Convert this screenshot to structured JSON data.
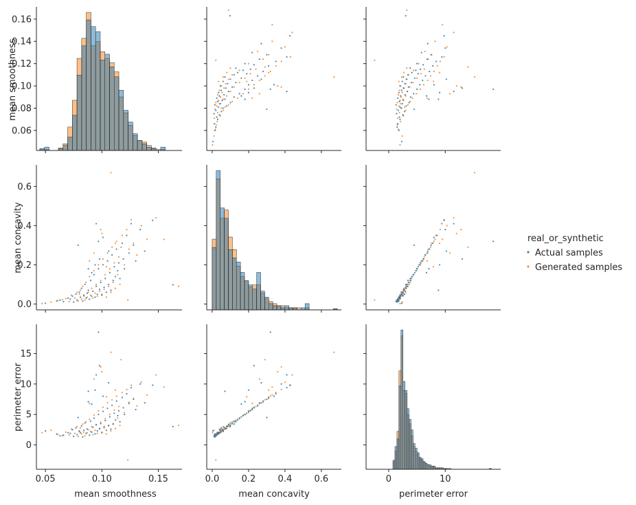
{
  "chart_data": {
    "type": "scatter",
    "kind": "pairplot",
    "variables": [
      "mean smoothness",
      "mean concavity",
      "perimeter error"
    ],
    "hue_title": "real_or_synthetic",
    "hue_levels": [
      {
        "name": "Actual samples",
        "color": "#1f77b4"
      },
      {
        "name": "Generated samples",
        "color": "#ff7f0e"
      }
    ],
    "legend_placement": "right",
    "grid": false,
    "axes": {
      "mean smoothness": {
        "lim": [
          0.042,
          0.171
        ],
        "ticks": [
          0.05,
          0.1,
          0.15
        ],
        "tick_labels": [
          "0.05",
          "0.10",
          "0.15"
        ],
        "y_ticks": [
          0.06,
          0.08,
          0.1,
          0.12,
          0.14,
          0.16
        ],
        "y_tick_labels": [
          "0.06",
          "0.08",
          "0.10",
          "0.12",
          "0.14",
          "0.16"
        ]
      },
      "mean concavity": {
        "lim": [
          -0.03,
          0.71
        ],
        "ticks": [
          0,
          0.2,
          0.4,
          0.6
        ],
        "tick_labels": [
          "0.0",
          "0.2",
          "0.4",
          "0.6"
        ],
        "y_ticks": [
          0,
          0.2,
          0.4,
          0.6
        ],
        "y_tick_labels": [
          "0.0",
          "0.2",
          "0.4",
          "0.6"
        ]
      },
      "perimeter error": {
        "lim": [
          -4,
          19.8
        ],
        "ticks": [
          0,
          10
        ],
        "tick_labels": [
          "0",
          "10"
        ],
        "y_ticks": [
          0,
          5,
          10,
          15
        ],
        "y_tick_labels": [
          "0",
          "5",
          "10",
          "15"
        ]
      }
    },
    "histograms": {
      "mean smoothness": {
        "bin_start": 0.045,
        "bin_width": 0.00412,
        "actual_density": [
          0.002,
          0.004,
          0.0,
          0.0,
          0.002,
          0.006,
          0.016,
          0.042,
          0.09,
          0.125,
          0.156,
          0.148,
          0.142,
          0.108,
          0.115,
          0.1,
          0.088,
          0.072,
          0.048,
          0.034,
          0.02,
          0.012,
          0.008,
          0.004,
          0.003,
          0.0,
          0.004
        ],
        "generated_density": [
          0.002,
          0.001,
          0.0,
          0.0,
          0.003,
          0.008,
          0.028,
          0.06,
          0.11,
          0.134,
          0.165,
          0.125,
          0.13,
          0.118,
          0.11,
          0.105,
          0.094,
          0.064,
          0.045,
          0.03,
          0.018,
          0.012,
          0.01,
          0.006,
          0.002,
          0.001,
          0.001
        ]
      },
      "mean concavity": {
        "bin_start": 0.0,
        "bin_width": 0.0222,
        "actual_density": [
          0.3,
          0.67,
          0.49,
          0.44,
          0.29,
          0.25,
          0.23,
          0.18,
          0.14,
          0.12,
          0.1,
          0.18,
          0.09,
          0.06,
          0.03,
          0.02,
          0.02,
          0.01,
          0.02,
          0.01,
          0.01,
          0.0,
          0.01,
          0.03,
          0.0,
          0.0,
          0.0,
          0.0,
          0.0,
          0.0,
          0.005
        ],
        "generated_density": [
          0.34,
          0.63,
          0.44,
          0.48,
          0.35,
          0.29,
          0.21,
          0.16,
          0.14,
          0.11,
          0.12,
          0.12,
          0.08,
          0.06,
          0.04,
          0.03,
          0.02,
          0.02,
          0.01,
          0.01,
          0.01,
          0.01,
          0.0,
          0.01,
          0.0,
          0.0,
          0.0,
          0.0,
          0.0,
          0.0,
          0.005
        ]
      },
      "perimeter error": {
        "bin_start": 0.75,
        "bin_width": 0.355,
        "actual_density": [
          0.06,
          0.15,
          0.2,
          0.55,
          0.92,
          0.58,
          0.52,
          0.4,
          0.33,
          0.26,
          0.17,
          0.14,
          0.11,
          0.08,
          0.07,
          0.05,
          0.04,
          0.03,
          0.03,
          0.02,
          0.02,
          0.01,
          0.01,
          0.01,
          0.01,
          0.005,
          0.005,
          0.0,
          0.005,
          0.0,
          0.0,
          0.0,
          0.0,
          0.0,
          0.0,
          0.0,
          0.0,
          0.0,
          0.0,
          0.0,
          0.0,
          0.0,
          0.0,
          0.0,
          0.0,
          0.0,
          0.0,
          0.0,
          0.005
        ],
        "generated_density": [
          0.05,
          0.12,
          0.25,
          0.65,
          0.88,
          0.52,
          0.5,
          0.36,
          0.3,
          0.22,
          0.15,
          0.12,
          0.1,
          0.07,
          0.06,
          0.05,
          0.04,
          0.03,
          0.02,
          0.02,
          0.02,
          0.01,
          0.01,
          0.01,
          0.01,
          0.005,
          0.005,
          0.005,
          0.0,
          0.0,
          0.0,
          0.0,
          0.0,
          0.0,
          0.0,
          0.0,
          0.0,
          0.0,
          0.0,
          0.0,
          0.0,
          0.0,
          0.0,
          0.0,
          0.0,
          0.0,
          0.0,
          0.0,
          0.005
        ]
      }
    },
    "scatter_samples": {
      "actual": [
        [
          0.05,
          0.004,
          2.3
        ],
        [
          0.06,
          0.015,
          1.8
        ],
        [
          0.063,
          0.02,
          1.5
        ],
        [
          0.066,
          0.012,
          1.6
        ],
        [
          0.07,
          0.03,
          2.0
        ],
        [
          0.072,
          0.025,
          1.9
        ],
        [
          0.074,
          0.04,
          2.5
        ],
        [
          0.075,
          0.01,
          1.4
        ],
        [
          0.077,
          0.05,
          2.8
        ],
        [
          0.078,
          0.02,
          1.7
        ],
        [
          0.079,
          0.3,
          4.5
        ],
        [
          0.08,
          0.06,
          2.2
        ],
        [
          0.081,
          0.035,
          2.0
        ],
        [
          0.082,
          0.08,
          3.1
        ],
        [
          0.083,
          0.015,
          1.3
        ],
        [
          0.084,
          0.045,
          2.4
        ],
        [
          0.085,
          0.1,
          3.6
        ],
        [
          0.086,
          0.03,
          1.9
        ],
        [
          0.087,
          0.055,
          2.6
        ],
        [
          0.088,
          0.07,
          8.8
        ],
        [
          0.089,
          0.025,
          1.6
        ],
        [
          0.09,
          0.12,
          3.9
        ],
        [
          0.091,
          0.04,
          2.1
        ],
        [
          0.092,
          0.065,
          2.9
        ],
        [
          0.093,
          0.15,
          4.4
        ],
        [
          0.094,
          0.035,
          1.8
        ],
        [
          0.095,
          0.09,
          3.3
        ],
        [
          0.096,
          0.05,
          2.3
        ],
        [
          0.097,
          0.18,
          5.0
        ],
        [
          0.098,
          0.075,
          2.7
        ],
        [
          0.099,
          0.11,
          3.5
        ],
        [
          0.1,
          0.045,
          2.0
        ],
        [
          0.101,
          0.2,
          5.5
        ],
        [
          0.102,
          0.085,
          3.0
        ],
        [
          0.103,
          0.13,
          4.0
        ],
        [
          0.104,
          0.06,
          2.4
        ],
        [
          0.105,
          0.22,
          6.0
        ],
        [
          0.106,
          0.1,
          3.2
        ],
        [
          0.107,
          0.16,
          4.6
        ],
        [
          0.108,
          0.07,
          2.6
        ],
        [
          0.109,
          0.25,
          6.5
        ],
        [
          0.11,
          0.12,
          3.4
        ],
        [
          0.111,
          0.19,
          5.2
        ],
        [
          0.112,
          0.14,
          4.1
        ],
        [
          0.113,
          0.28,
          7.2
        ],
        [
          0.114,
          0.17,
          4.8
        ],
        [
          0.115,
          0.21,
          5.6
        ],
        [
          0.116,
          0.13,
          3.8
        ],
        [
          0.118,
          0.31,
          7.8
        ],
        [
          0.119,
          0.23,
          6.1
        ],
        [
          0.12,
          0.18,
          5.0
        ],
        [
          0.122,
          0.35,
          8.4
        ],
        [
          0.124,
          0.26,
          6.8
        ],
        [
          0.126,
          0.41,
          9.4
        ],
        [
          0.128,
          0.3,
          7.5
        ],
        [
          0.13,
          0.22,
          5.8
        ],
        [
          0.134,
          0.38,
          10.0
        ],
        [
          0.138,
          0.27,
          6.9
        ],
        [
          0.145,
          0.427,
          9.8
        ],
        [
          0.163,
          0.098,
          3.0
        ],
        [
          0.097,
          0.32,
          18.5
        ],
        [
          0.095,
          0.41,
          11.5
        ],
        [
          0.098,
          0.23,
          13.0
        ],
        [
          0.094,
          0.2,
          9.0
        ],
        [
          0.106,
          0.27,
          10.2
        ],
        [
          0.101,
          0.34,
          8.0
        ],
        [
          0.088,
          0.18,
          7.1
        ],
        [
          0.091,
          0.16,
          6.7
        ]
      ],
      "generated": [
        [
          0.047,
          0.002,
          2.0
        ],
        [
          0.055,
          0.01,
          2.4
        ],
        [
          0.061,
          0.018,
          1.7
        ],
        [
          0.065,
          0.022,
          1.5
        ],
        [
          0.068,
          0.028,
          2.1
        ],
        [
          0.071,
          0.012,
          1.6
        ],
        [
          0.073,
          0.045,
          2.6
        ],
        [
          0.076,
          0.03,
          1.9
        ],
        [
          0.078,
          0.06,
          3.0
        ],
        [
          0.079,
          0.015,
          1.4
        ],
        [
          0.08,
          0.05,
          2.3
        ],
        [
          0.081,
          0.07,
          2.8
        ],
        [
          0.082,
          0.025,
          1.8
        ],
        [
          0.083,
          0.09,
          3.4
        ],
        [
          0.084,
          0.04,
          2.1
        ],
        [
          0.085,
          0.02,
          1.5
        ],
        [
          0.086,
          0.11,
          3.8
        ],
        [
          0.087,
          0.035,
          2.0
        ],
        [
          0.088,
          0.06,
          2.5
        ],
        [
          0.089,
          0.14,
          4.2
        ],
        [
          0.09,
          0.045,
          2.2
        ],
        [
          0.091,
          0.08,
          3.0
        ],
        [
          0.092,
          0.03,
          1.7
        ],
        [
          0.093,
          0.17,
          4.9
        ],
        [
          0.094,
          0.055,
          2.4
        ],
        [
          0.095,
          0.1,
          3.3
        ],
        [
          0.096,
          0.04,
          1.9
        ],
        [
          0.097,
          0.2,
          5.6
        ],
        [
          0.098,
          0.065,
          2.6
        ],
        [
          0.099,
          0.12,
          3.7
        ],
        [
          0.1,
          0.05,
          2.1
        ],
        [
          0.101,
          0.23,
          6.2
        ],
        [
          0.102,
          0.075,
          2.8
        ],
        [
          0.103,
          0.15,
          4.3
        ],
        [
          0.104,
          0.035,
          1.8
        ],
        [
          0.105,
          0.26,
          6.9
        ],
        [
          0.106,
          0.09,
          3.1
        ],
        [
          0.107,
          0.18,
          5.0
        ],
        [
          0.108,
          0.06,
          2.3
        ],
        [
          0.109,
          0.29,
          7.4
        ],
        [
          0.11,
          0.11,
          3.5
        ],
        [
          0.111,
          0.21,
          5.7
        ],
        [
          0.112,
          0.08,
          2.7
        ],
        [
          0.113,
          0.32,
          8.0
        ],
        [
          0.114,
          0.15,
          4.4
        ],
        [
          0.115,
          0.24,
          6.3
        ],
        [
          0.116,
          0.1,
          3.2
        ],
        [
          0.118,
          0.35,
          8.6
        ],
        [
          0.12,
          0.2,
          5.3
        ],
        [
          0.122,
          0.38,
          9.1
        ],
        [
          0.124,
          0.28,
          7.0
        ],
        [
          0.126,
          0.43,
          9.8
        ],
        [
          0.128,
          0.31,
          7.6
        ],
        [
          0.131,
          0.25,
          6.4
        ],
        [
          0.135,
          0.4,
          10.3
        ],
        [
          0.14,
          0.33,
          8.2
        ],
        [
          0.148,
          0.44,
          11.5
        ],
        [
          0.155,
          0.33,
          9.5
        ],
        [
          0.168,
          0.09,
          3.2
        ],
        [
          0.123,
          0.02,
          -2.5
        ],
        [
          0.108,
          0.67,
          15.2
        ],
        [
          0.099,
          0.38,
          12.8
        ],
        [
          0.117,
          0.29,
          14.0
        ],
        [
          0.093,
          0.26,
          10.8
        ],
        [
          0.112,
          0.31,
          9.0
        ],
        [
          0.104,
          0.19,
          7.9
        ],
        [
          0.089,
          0.22,
          6.8
        ],
        [
          0.1,
          0.36,
          12.0
        ]
      ]
    }
  }
}
